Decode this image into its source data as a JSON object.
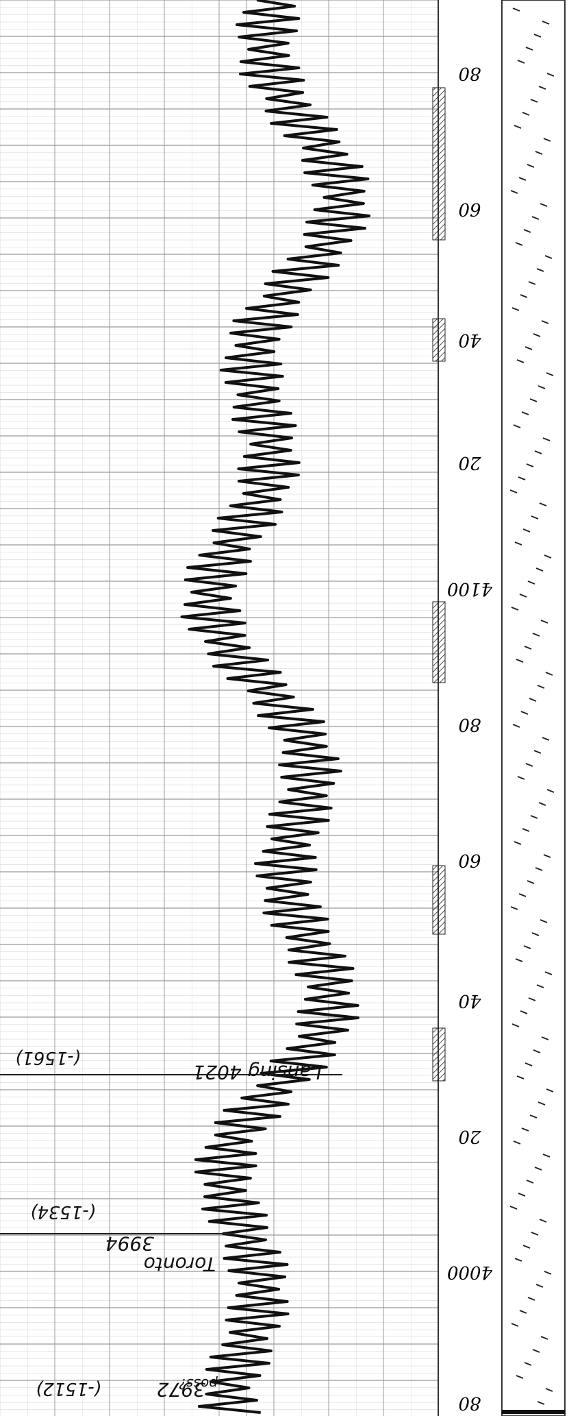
{
  "depth_labels": [
    "80",
    "60",
    "40",
    "20",
    "4100",
    "80",
    "60",
    "40",
    "20",
    "4000",
    "80"
  ],
  "annotations": {
    "lansing": {
      "name": "Lansing 4021",
      "subsea": "(-1561)"
    },
    "toronto": {
      "name": "Toronto",
      "depth": "3994",
      "subsea": "(-1534)"
    },
    "top": {
      "depth": "3972",
      "subsea": "(-1512)",
      "note": "poss?"
    }
  }
}
